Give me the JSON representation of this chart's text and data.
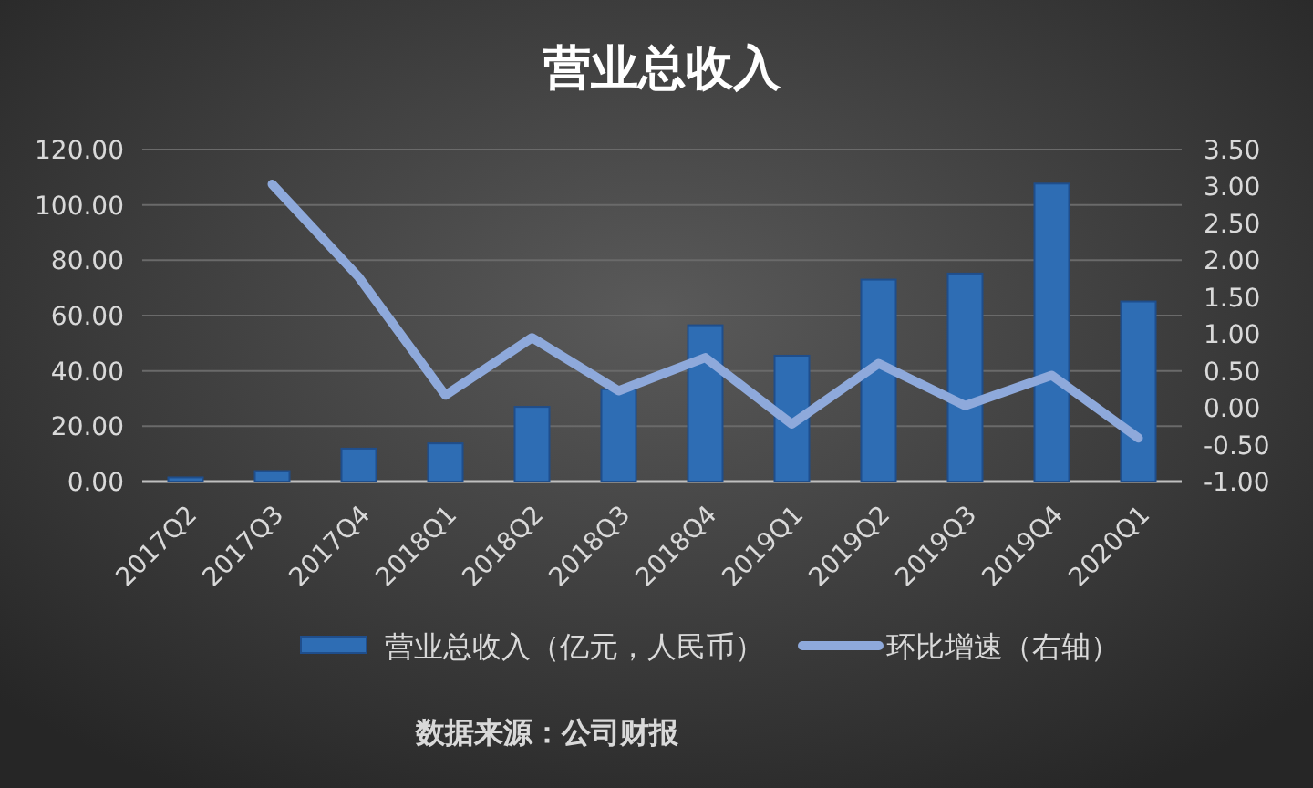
{
  "chart_data": {
    "type": "bar",
    "title": "营业总收入",
    "categories": [
      "2017Q2",
      "2017Q3",
      "2017Q4",
      "2018Q1",
      "2018Q2",
      "2018Q3",
      "2018Q4",
      "2019Q1",
      "2019Q2",
      "2019Q3",
      "2019Q4",
      "2020Q1"
    ],
    "series": [
      {
        "name": "营业总收入（亿元，人民币）",
        "color": "#2e6db4",
        "values": [
          1.5,
          3.8,
          11.9,
          13.8,
          27,
          33.4,
          56.5,
          45.5,
          73,
          75.2,
          107.7,
          65.1
        ]
      },
      {
        "name": "环比增速（右轴）",
        "type": "line",
        "axis": "y2",
        "color": "#8ea9db",
        "values": [
          null,
          3.03,
          1.77,
          0.17,
          0.95,
          0.23,
          0.68,
          -0.22,
          0.6,
          0.03,
          0.44,
          -0.41
        ]
      }
    ],
    "ylim": [
      0,
      120
    ],
    "yticks": [
      {
        "value": 0,
        "label": "0.00"
      },
      {
        "value": 20,
        "label": "20.00"
      },
      {
        "value": 40,
        "label": "40.00"
      },
      {
        "value": 60,
        "label": "60.00"
      },
      {
        "value": 80,
        "label": "80.00"
      },
      {
        "value": 100,
        "label": "100.00"
      },
      {
        "value": 120,
        "label": "120.00"
      }
    ],
    "y2lim": [
      -1,
      3.5
    ],
    "y2ticks": [
      {
        "value": -1,
        "label": "-1.00"
      },
      {
        "value": -0.5,
        "label": "-0.50"
      },
      {
        "value": 0,
        "label": "0.00"
      },
      {
        "value": 0.5,
        "label": "0.50"
      },
      {
        "value": 1,
        "label": "1.00"
      },
      {
        "value": 1.5,
        "label": "1.50"
      },
      {
        "value": 2,
        "label": "2.00"
      },
      {
        "value": 2.5,
        "label": "2.50"
      },
      {
        "value": 3,
        "label": "3.00"
      },
      {
        "value": 3.5,
        "label": "3.50"
      }
    ],
    "grid": "y",
    "legend": "bottom",
    "annotations": [
      "数据来源：公司财报"
    ]
  }
}
